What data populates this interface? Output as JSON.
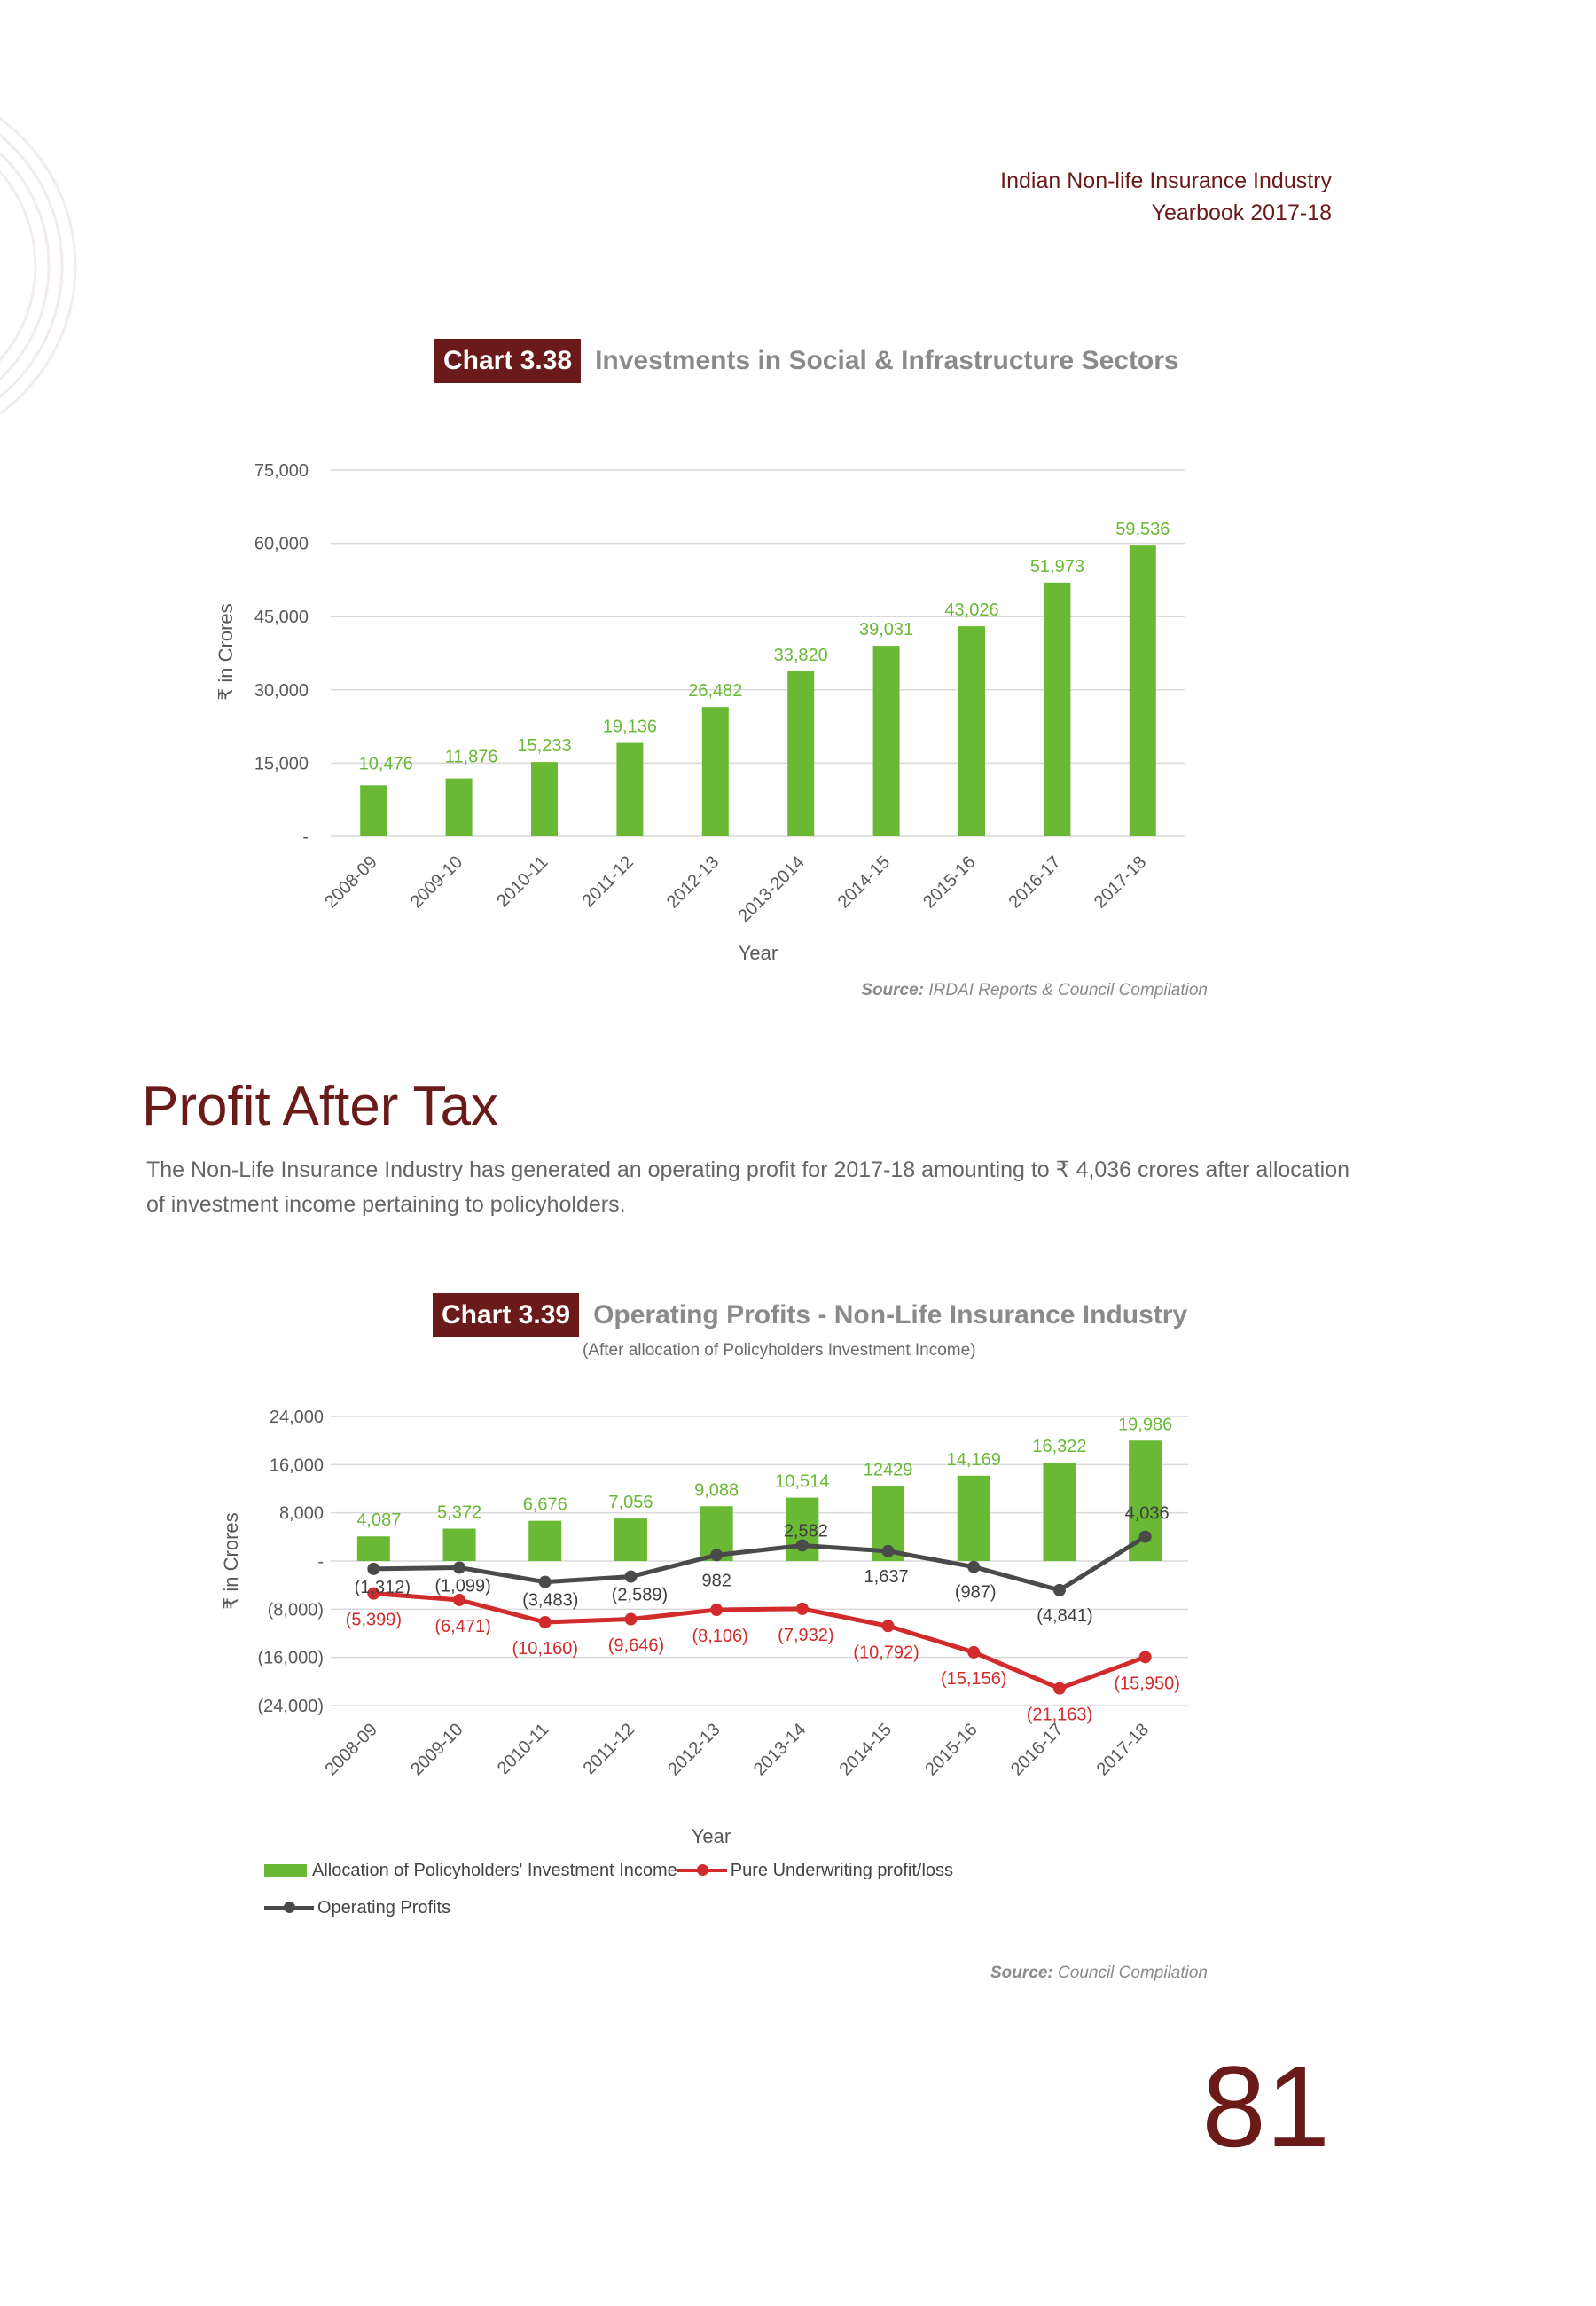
{
  "header": {
    "line1": "Indian Non-life Insurance Industry",
    "line2": "Yearbook 2017-18"
  },
  "chart1": {
    "badge": "Chart 3.38",
    "title": "Investments in Social & Infrastructure Sectors",
    "source_label": "Source:",
    "source_text": "IRDAI Reports & Council Compilation"
  },
  "section": {
    "title": "Profit After Tax",
    "body": "The Non-Life Insurance Industry has generated an operating profit for 2017-18 amounting to ₹ 4,036 crores after allocation of investment income pertaining to policyholders."
  },
  "chart2": {
    "badge": "Chart 3.39",
    "title": "Operating Profits - Non-Life Insurance Industry",
    "subtitle": "(After allocation of Policyholders Investment Income)",
    "source_label": "Source:",
    "source_text": "Council Compilation"
  },
  "page_number": "81",
  "colors": {
    "bar": "#6ab934",
    "underwriting": "#d22b2b",
    "operating": "#4a4a4a",
    "brand": "#6b1a1a"
  },
  "chart_data": [
    {
      "type": "bar",
      "categories": [
        "2008-09",
        "2009-10",
        "2010-11",
        "2011-12",
        "2012-13",
        "2013-2014",
        "2014-15",
        "2015-16",
        "2016-17",
        "2017-18"
      ],
      "values": [
        10476,
        11876,
        15233,
        19136,
        26482,
        33820,
        39031,
        43026,
        51973,
        59536
      ],
      "data_labels": [
        "10,476",
        "11,876",
        "15,233",
        "19,136",
        "26,482",
        "33,820",
        "39,031",
        "43,026",
        "51,973",
        "59,536"
      ],
      "ylabel": "₹ in Crores",
      "xlabel": "Year",
      "ylim": [
        0,
        75000
      ],
      "yticks": [
        0,
        15000,
        30000,
        45000,
        60000,
        75000
      ],
      "ytick_labels": [
        "-",
        "15,000",
        "30,000",
        "45,000",
        "60,000",
        "75,000"
      ],
      "grid": true
    },
    {
      "type": "bar",
      "categories": [
        "2008-09",
        "2009-10",
        "2010-11",
        "2011-12",
        "2012-13",
        "2013-14",
        "2014-15",
        "2015-16",
        "2016-17",
        "2017-18"
      ],
      "ylabel": "₹ in Crores",
      "xlabel": "Year",
      "ylim": [
        -24000,
        24000
      ],
      "yticks": [
        24000,
        16000,
        8000,
        0,
        -8000,
        -16000,
        -24000
      ],
      "ytick_labels": [
        "24,000",
        "16,000",
        "8,000",
        "-",
        "(8,000)",
        "(16,000)",
        "(24,000)"
      ],
      "grid": true,
      "legend": "bottom",
      "series": [
        {
          "name": "Allocation of Policyholders' Investment Income",
          "kind": "bar",
          "values": [
            4087,
            5372,
            6676,
            7056,
            9088,
            10514,
            12429,
            14169,
            16322,
            19986
          ],
          "data_labels": [
            "4,087",
            "5,372",
            "6,676",
            "7,056",
            "9,088",
            "10,514",
            "12429",
            "14,169",
            "16,322",
            "19,986"
          ]
        },
        {
          "name": "Pure Underwriting profit/loss",
          "kind": "line",
          "values": [
            -5399,
            -6471,
            -10160,
            -9646,
            -8106,
            -7932,
            -10792,
            -15156,
            -21163,
            -15950
          ],
          "data_labels": [
            "(5,399)",
            "(6,471)",
            "(10,160)",
            "(9,646)",
            "(8,106)",
            "(7,932)",
            "(10,792)",
            "(15,156)",
            "(21,163)",
            "(15,950)"
          ]
        },
        {
          "name": "Operating Profits",
          "kind": "line",
          "values": [
            -1312,
            -1099,
            -3483,
            -2589,
            982,
            2582,
            1637,
            -987,
            -4841,
            4036
          ],
          "data_labels": [
            "(1,312)",
            "(1,099)",
            "(3,483)",
            "(2,589)",
            "982",
            "2,582",
            "1,637",
            "(987)",
            "(4,841)",
            "4,036"
          ]
        }
      ]
    }
  ]
}
